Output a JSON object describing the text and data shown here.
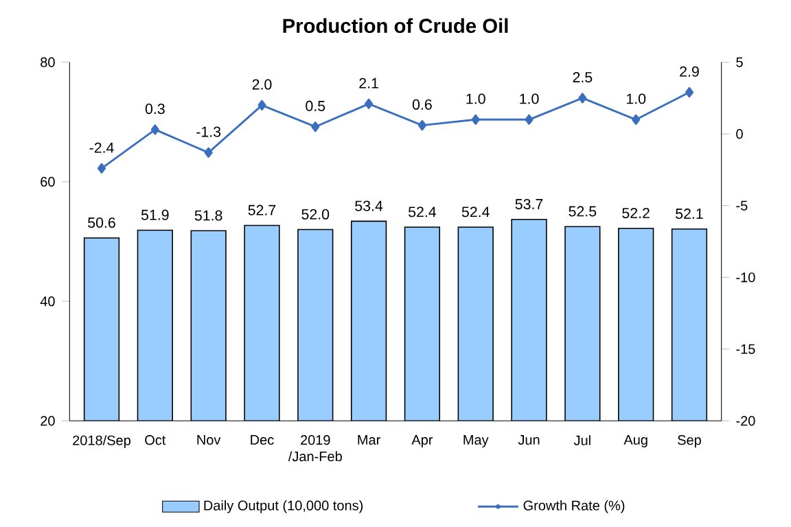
{
  "chart_data": {
    "type": "bar",
    "title": "Production of Crude Oil",
    "categories": [
      "2018/Sep",
      "Oct",
      "Nov",
      "Dec",
      "2019 /Jan-Feb",
      "Mar",
      "Apr",
      "May",
      "Jun",
      "Jul",
      "Aug",
      "Sep"
    ],
    "series": [
      {
        "name": "Daily Output (10,000 tons)",
        "color": "#99ccff",
        "values": [
          50.6,
          51.9,
          51.8,
          52.7,
          52.0,
          53.4,
          52.4,
          52.4,
          53.7,
          52.5,
          52.2,
          52.1
        ],
        "value_labels": [
          "50.6",
          "51.9",
          "51.8",
          "52.7",
          "52.0",
          "53.4",
          "52.4",
          "52.4",
          "53.7",
          "52.5",
          "52.2",
          "52.1"
        ]
      },
      {
        "name": "Growth Rate (%)",
        "type": "line",
        "axis": "y2",
        "color": "#3a6fbf",
        "marker": "diamond",
        "line_style": "solid",
        "values": [
          -2.4,
          0.3,
          -1.3,
          2.0,
          0.5,
          2.1,
          0.6,
          1.0,
          1.0,
          2.5,
          1.0,
          2.9
        ],
        "value_labels": [
          "-2.4",
          "0.3",
          "-1.3",
          "2.0",
          "0.5",
          "2.1",
          "0.6",
          "1.0",
          "1.0",
          "2.5",
          "1.0",
          "2.9"
        ]
      }
    ],
    "ylim": [
      20,
      80
    ],
    "yticks": [
      20,
      40,
      60,
      80
    ],
    "y2lim": [
      -20,
      5
    ],
    "y2ticks": [
      -20,
      -15,
      -10,
      -5,
      0,
      5
    ],
    "legend": "bottom"
  }
}
